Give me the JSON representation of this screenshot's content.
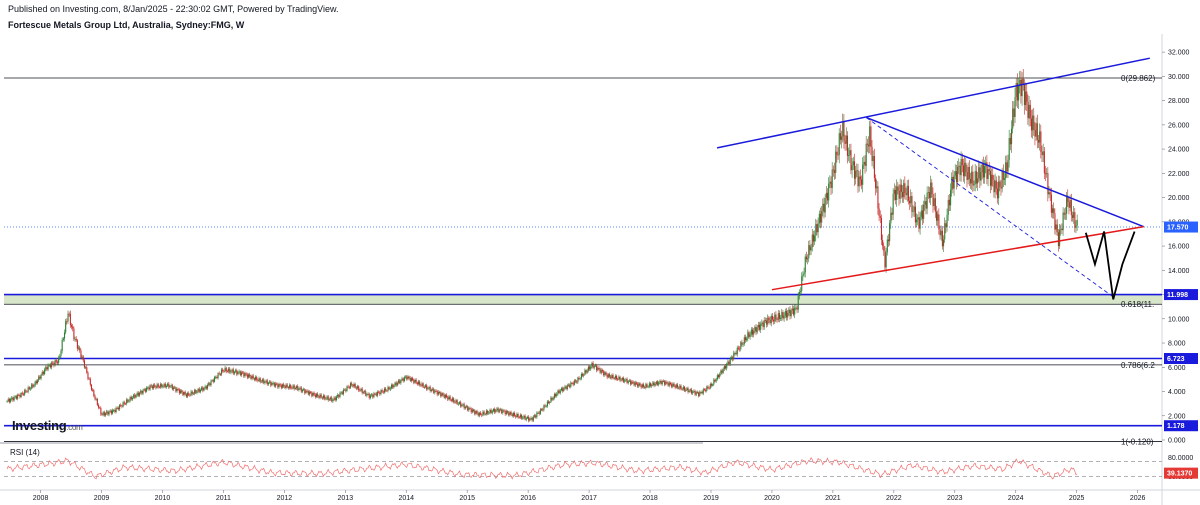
{
  "header": {
    "published": "Published on Investing.com, 8/Jan/2025 - 22:30:02 GMT, Powered by TradingView.",
    "symbol": "Fortescue Metals Group Ltd, Australia, Sydney:FMG, W"
  },
  "logo": {
    "main": "Investing",
    "suffix": ".com"
  },
  "rsi_label": "RSI (14)",
  "colors": {
    "candle_up": "#2e7d32",
    "candle_down": "#c62828",
    "trendline_blue": "#1a1adc",
    "trendline_red": "#e41a1a",
    "zone_fill": "#c9dcb5",
    "price_badge": "#2962ff",
    "rsi_line": "#f07070",
    "rsi_badge": "#e53935",
    "projection": "#000000"
  },
  "chart_data": {
    "type": "candlestick",
    "interval": "W",
    "x_labels": [
      "2008",
      "2009",
      "2010",
      "2011",
      "2012",
      "2013",
      "2014",
      "2015",
      "2016",
      "2017",
      "2018",
      "2019",
      "2020",
      "2021",
      "2022",
      "2023",
      "2024",
      "2025",
      "2026"
    ],
    "x_range": [
      2007.4,
      2026.4
    ],
    "y_ticks": [
      "32.000",
      "30.000",
      "28.000",
      "26.000",
      "24.000",
      "22.000",
      "20.000",
      "18.000",
      "16.000",
      "14.000",
      "12.000",
      "10.000",
      "8.000",
      "6.000",
      "4.000",
      "2.000",
      "0.000"
    ],
    "y_range": [
      0,
      33
    ],
    "price_path": [
      [
        2007.45,
        3.2
      ],
      [
        2007.7,
        3.8
      ],
      [
        2007.9,
        4.6
      ],
      [
        2008.1,
        6.0
      ],
      [
        2008.3,
        6.6
      ],
      [
        2008.45,
        10.5
      ],
      [
        2008.55,
        8.5
      ],
      [
        2008.7,
        6.5
      ],
      [
        2008.85,
        4.0
      ],
      [
        2009.0,
        2.1
      ],
      [
        2009.2,
        2.4
      ],
      [
        2009.5,
        3.5
      ],
      [
        2009.8,
        4.4
      ],
      [
        2010.1,
        4.5
      ],
      [
        2010.4,
        3.7
      ],
      [
        2010.7,
        4.3
      ],
      [
        2011.0,
        5.8
      ],
      [
        2011.3,
        5.5
      ],
      [
        2011.6,
        4.9
      ],
      [
        2011.9,
        4.5
      ],
      [
        2012.2,
        4.3
      ],
      [
        2012.5,
        3.7
      ],
      [
        2012.8,
        3.3
      ],
      [
        2013.1,
        4.6
      ],
      [
        2013.4,
        3.6
      ],
      [
        2013.7,
        4.2
      ],
      [
        2014.0,
        5.2
      ],
      [
        2014.3,
        4.4
      ],
      [
        2014.6,
        3.7
      ],
      [
        2014.9,
        2.9
      ],
      [
        2015.2,
        2.1
      ],
      [
        2015.5,
        2.5
      ],
      [
        2015.8,
        2.0
      ],
      [
        2016.05,
        1.7
      ],
      [
        2016.2,
        2.4
      ],
      [
        2016.5,
        4.0
      ],
      [
        2016.8,
        4.9
      ],
      [
        2017.05,
        6.2
      ],
      [
        2017.3,
        5.3
      ],
      [
        2017.6,
        4.9
      ],
      [
        2017.9,
        4.4
      ],
      [
        2018.2,
        4.8
      ],
      [
        2018.5,
        4.3
      ],
      [
        2018.8,
        3.8
      ],
      [
        2019.0,
        4.5
      ],
      [
        2019.3,
        6.5
      ],
      [
        2019.6,
        8.6
      ],
      [
        2019.9,
        9.8
      ],
      [
        2020.2,
        10.3
      ],
      [
        2020.4,
        10.8
      ],
      [
        2020.55,
        14.8
      ],
      [
        2020.7,
        17.0
      ],
      [
        2020.85,
        19.3
      ],
      [
        2021.0,
        22.0
      ],
      [
        2021.15,
        25.7
      ],
      [
        2021.3,
        22.8
      ],
      [
        2021.45,
        21.2
      ],
      [
        2021.6,
        25.3
      ],
      [
        2021.75,
        19.0
      ],
      [
        2021.85,
        14.5
      ],
      [
        2022.0,
        20.4
      ],
      [
        2022.2,
        20.6
      ],
      [
        2022.4,
        17.8
      ],
      [
        2022.6,
        20.8
      ],
      [
        2022.8,
        16.2
      ],
      [
        2022.95,
        21.2
      ],
      [
        2023.1,
        22.7
      ],
      [
        2023.3,
        21.3
      ],
      [
        2023.5,
        22.5
      ],
      [
        2023.7,
        20.5
      ],
      [
        2023.85,
        22.4
      ],
      [
        2024.0,
        28.7
      ],
      [
        2024.1,
        29.4
      ],
      [
        2024.25,
        26.3
      ],
      [
        2024.4,
        24.6
      ],
      [
        2024.55,
        20.2
      ],
      [
        2024.7,
        16.5
      ],
      [
        2024.85,
        19.9
      ],
      [
        2024.97,
        17.9
      ],
      [
        2025.02,
        17.57
      ]
    ],
    "last_price": "17.570",
    "levels": [
      {
        "value": 11.998,
        "label": "11.998"
      },
      {
        "value": 6.723,
        "label": "6.723"
      },
      {
        "value": 1.178,
        "label": "1.178"
      }
    ],
    "fibonacci": [
      {
        "value": 29.862,
        "label": "0(29.862)"
      },
      {
        "value": 11.2,
        "label": "0.618(11."
      },
      {
        "value": 6.2,
        "label": "0.786(6.2"
      },
      {
        "value": -0.12,
        "label": "1(-0.120)"
      }
    ],
    "trendlines": [
      {
        "name": "upper",
        "color": "blue",
        "points": [
          [
            2019.1,
            24.1
          ],
          [
            2026.2,
            31.5
          ]
        ]
      },
      {
        "name": "descending",
        "color": "blue",
        "points": [
          [
            2021.55,
            26.6
          ],
          [
            2026.1,
            17.6
          ]
        ]
      },
      {
        "name": "support",
        "color": "red",
        "points": [
          [
            2020.0,
            12.4
          ],
          [
            2026.1,
            17.6
          ]
        ]
      },
      {
        "name": "dashed",
        "color": "blue",
        "points": [
          [
            2021.55,
            26.6
          ],
          [
            2025.6,
            11.8
          ]
        ]
      }
    ],
    "projection_path": [
      [
        2025.15,
        17.1
      ],
      [
        2025.3,
        14.5
      ],
      [
        2025.45,
        17.2
      ],
      [
        2025.6,
        11.6
      ],
      [
        2025.75,
        14.5
      ],
      [
        2025.95,
        17.2
      ]
    ],
    "rsi": {
      "label": "RSI (14)",
      "y_ticks": [
        "80.0000",
        "30.0000"
      ],
      "levels": [
        70,
        30
      ],
      "last": "39.1370",
      "anchors": [
        [
          2007.45,
          50
        ],
        [
          2008.2,
          65
        ],
        [
          2008.45,
          72
        ],
        [
          2008.9,
          30
        ],
        [
          2009.4,
          55
        ],
        [
          2010.2,
          45
        ],
        [
          2011.0,
          68
        ],
        [
          2011.8,
          40
        ],
        [
          2012.6,
          38
        ],
        [
          2013.4,
          52
        ],
        [
          2014.0,
          62
        ],
        [
          2014.9,
          35
        ],
        [
          2015.8,
          33
        ],
        [
          2016.6,
          62
        ],
        [
          2017.1,
          66
        ],
        [
          2017.8,
          45
        ],
        [
          2018.5,
          55
        ],
        [
          2018.9,
          40
        ],
        [
          2019.4,
          68
        ],
        [
          2020.0,
          48
        ],
        [
          2020.6,
          72
        ],
        [
          2021.1,
          68
        ],
        [
          2021.8,
          35
        ],
        [
          2022.3,
          60
        ],
        [
          2022.8,
          42
        ],
        [
          2023.3,
          58
        ],
        [
          2023.8,
          50
        ],
        [
          2024.05,
          72
        ],
        [
          2024.6,
          30
        ],
        [
          2024.9,
          50
        ],
        [
          2025.02,
          39.137
        ]
      ]
    }
  }
}
